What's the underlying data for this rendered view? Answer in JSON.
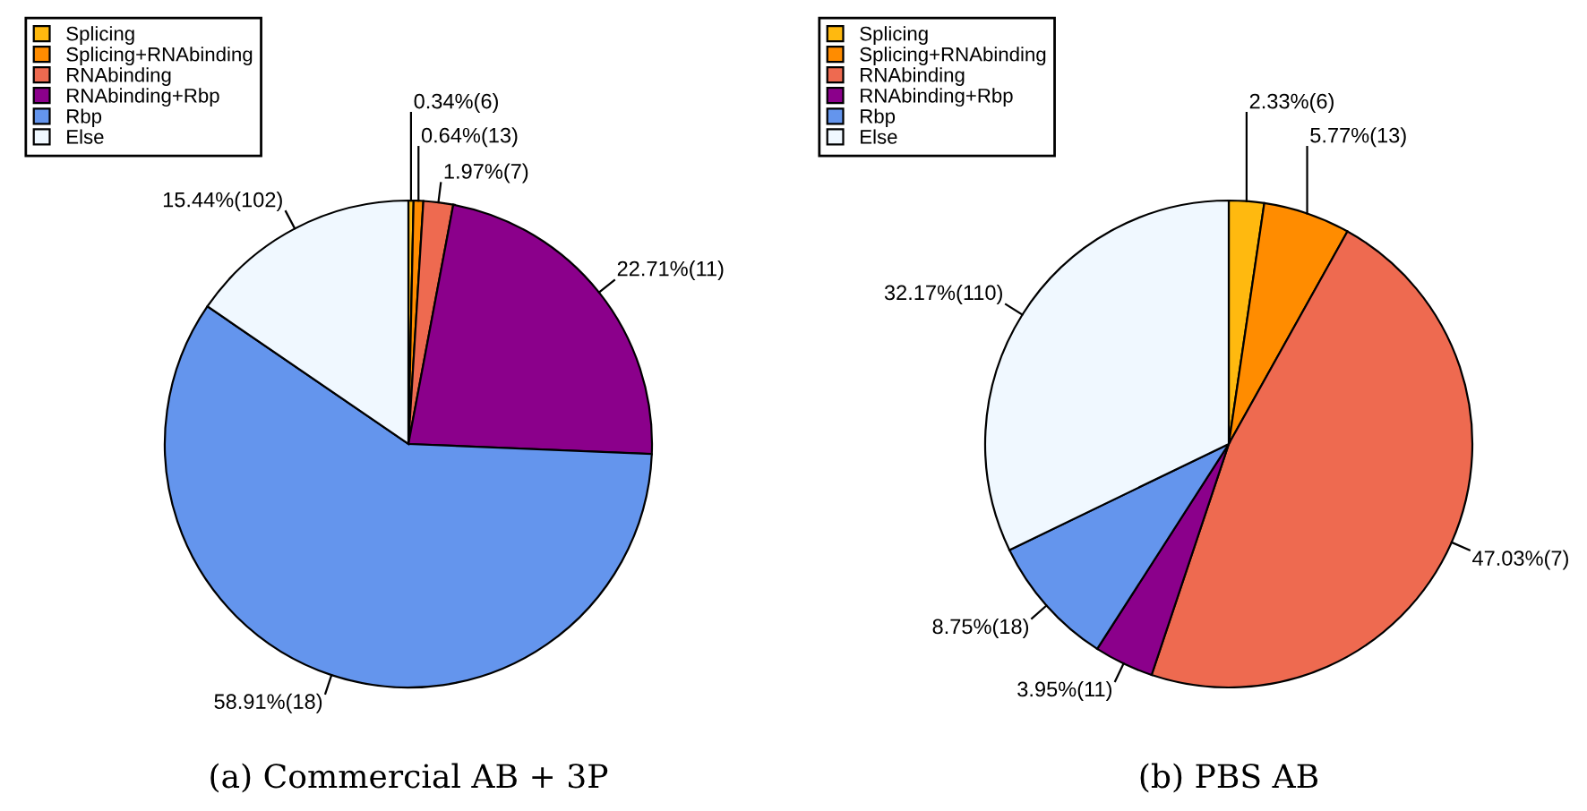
{
  "chart_data": [
    {
      "type": "pie",
      "title": "(a) Commercial AB + 3P",
      "legend": "top left",
      "categories": [
        "Splicing",
        "Splicing+RNAbinding",
        "RNAbinding",
        "RNAbinding+Rbp",
        "Rbp",
        "Else"
      ],
      "values": [
        0.34,
        0.64,
        1.97,
        22.71,
        58.91,
        15.44
      ],
      "value_labels": [
        "0.34%(6)",
        "0.64%(13)",
        "1.97%(7)",
        "22.71%(11)",
        "58.91%(18)",
        "15.44%(102)"
      ],
      "colors": [
        "#ffb90f",
        "#ff8c00",
        "#ee6a50",
        "#8b008b",
        "#6495ed",
        "#f0f8ff"
      ]
    },
    {
      "type": "pie",
      "title": "(b) PBS AB",
      "legend": "top left",
      "categories": [
        "Splicing",
        "Splicing+RNAbinding",
        "RNAbinding",
        "RNAbinding+Rbp",
        "Rbp",
        "Else"
      ],
      "values": [
        2.33,
        5.77,
        47.03,
        3.95,
        8.75,
        32.17
      ],
      "value_labels": [
        "2.33%(6)",
        "5.77%(13)",
        "47.03%(7)",
        "3.95%(11)",
        "8.75%(18)",
        "32.17%(110)"
      ],
      "colors": [
        "#ffb90f",
        "#ff8c00",
        "#ee6a50",
        "#8b008b",
        "#6495ed",
        "#f0f8ff"
      ]
    }
  ]
}
